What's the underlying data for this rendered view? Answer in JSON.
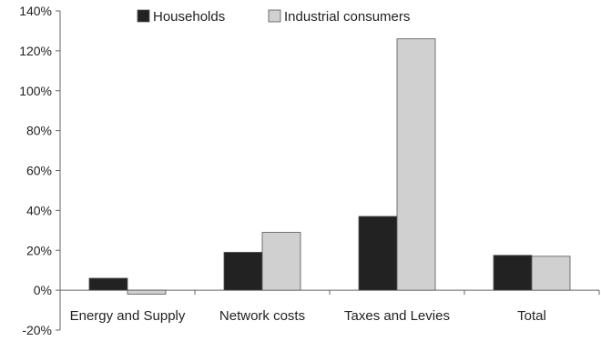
{
  "chart_data": {
    "type": "bar",
    "categories": [
      "Energy and Supply",
      "Network costs",
      "Taxes and Levies",
      "Total"
    ],
    "series": [
      {
        "name": "Households",
        "color": "#222222",
        "values": [
          6,
          19,
          37,
          17.5
        ]
      },
      {
        "name": "Industrial consumers",
        "color": "#d0d0d0",
        "values": [
          -2,
          29,
          126,
          17
        ]
      }
    ],
    "ylim": [
      -20,
      140
    ],
    "yticks": [
      -20,
      0,
      20,
      40,
      60,
      80,
      100,
      120,
      140
    ],
    "ytick_labels": [
      "-20%",
      "0%",
      "20%",
      "40%",
      "60%",
      "80%",
      "100%",
      "120%",
      "140%"
    ],
    "grid": false,
    "legend_position": "top"
  }
}
